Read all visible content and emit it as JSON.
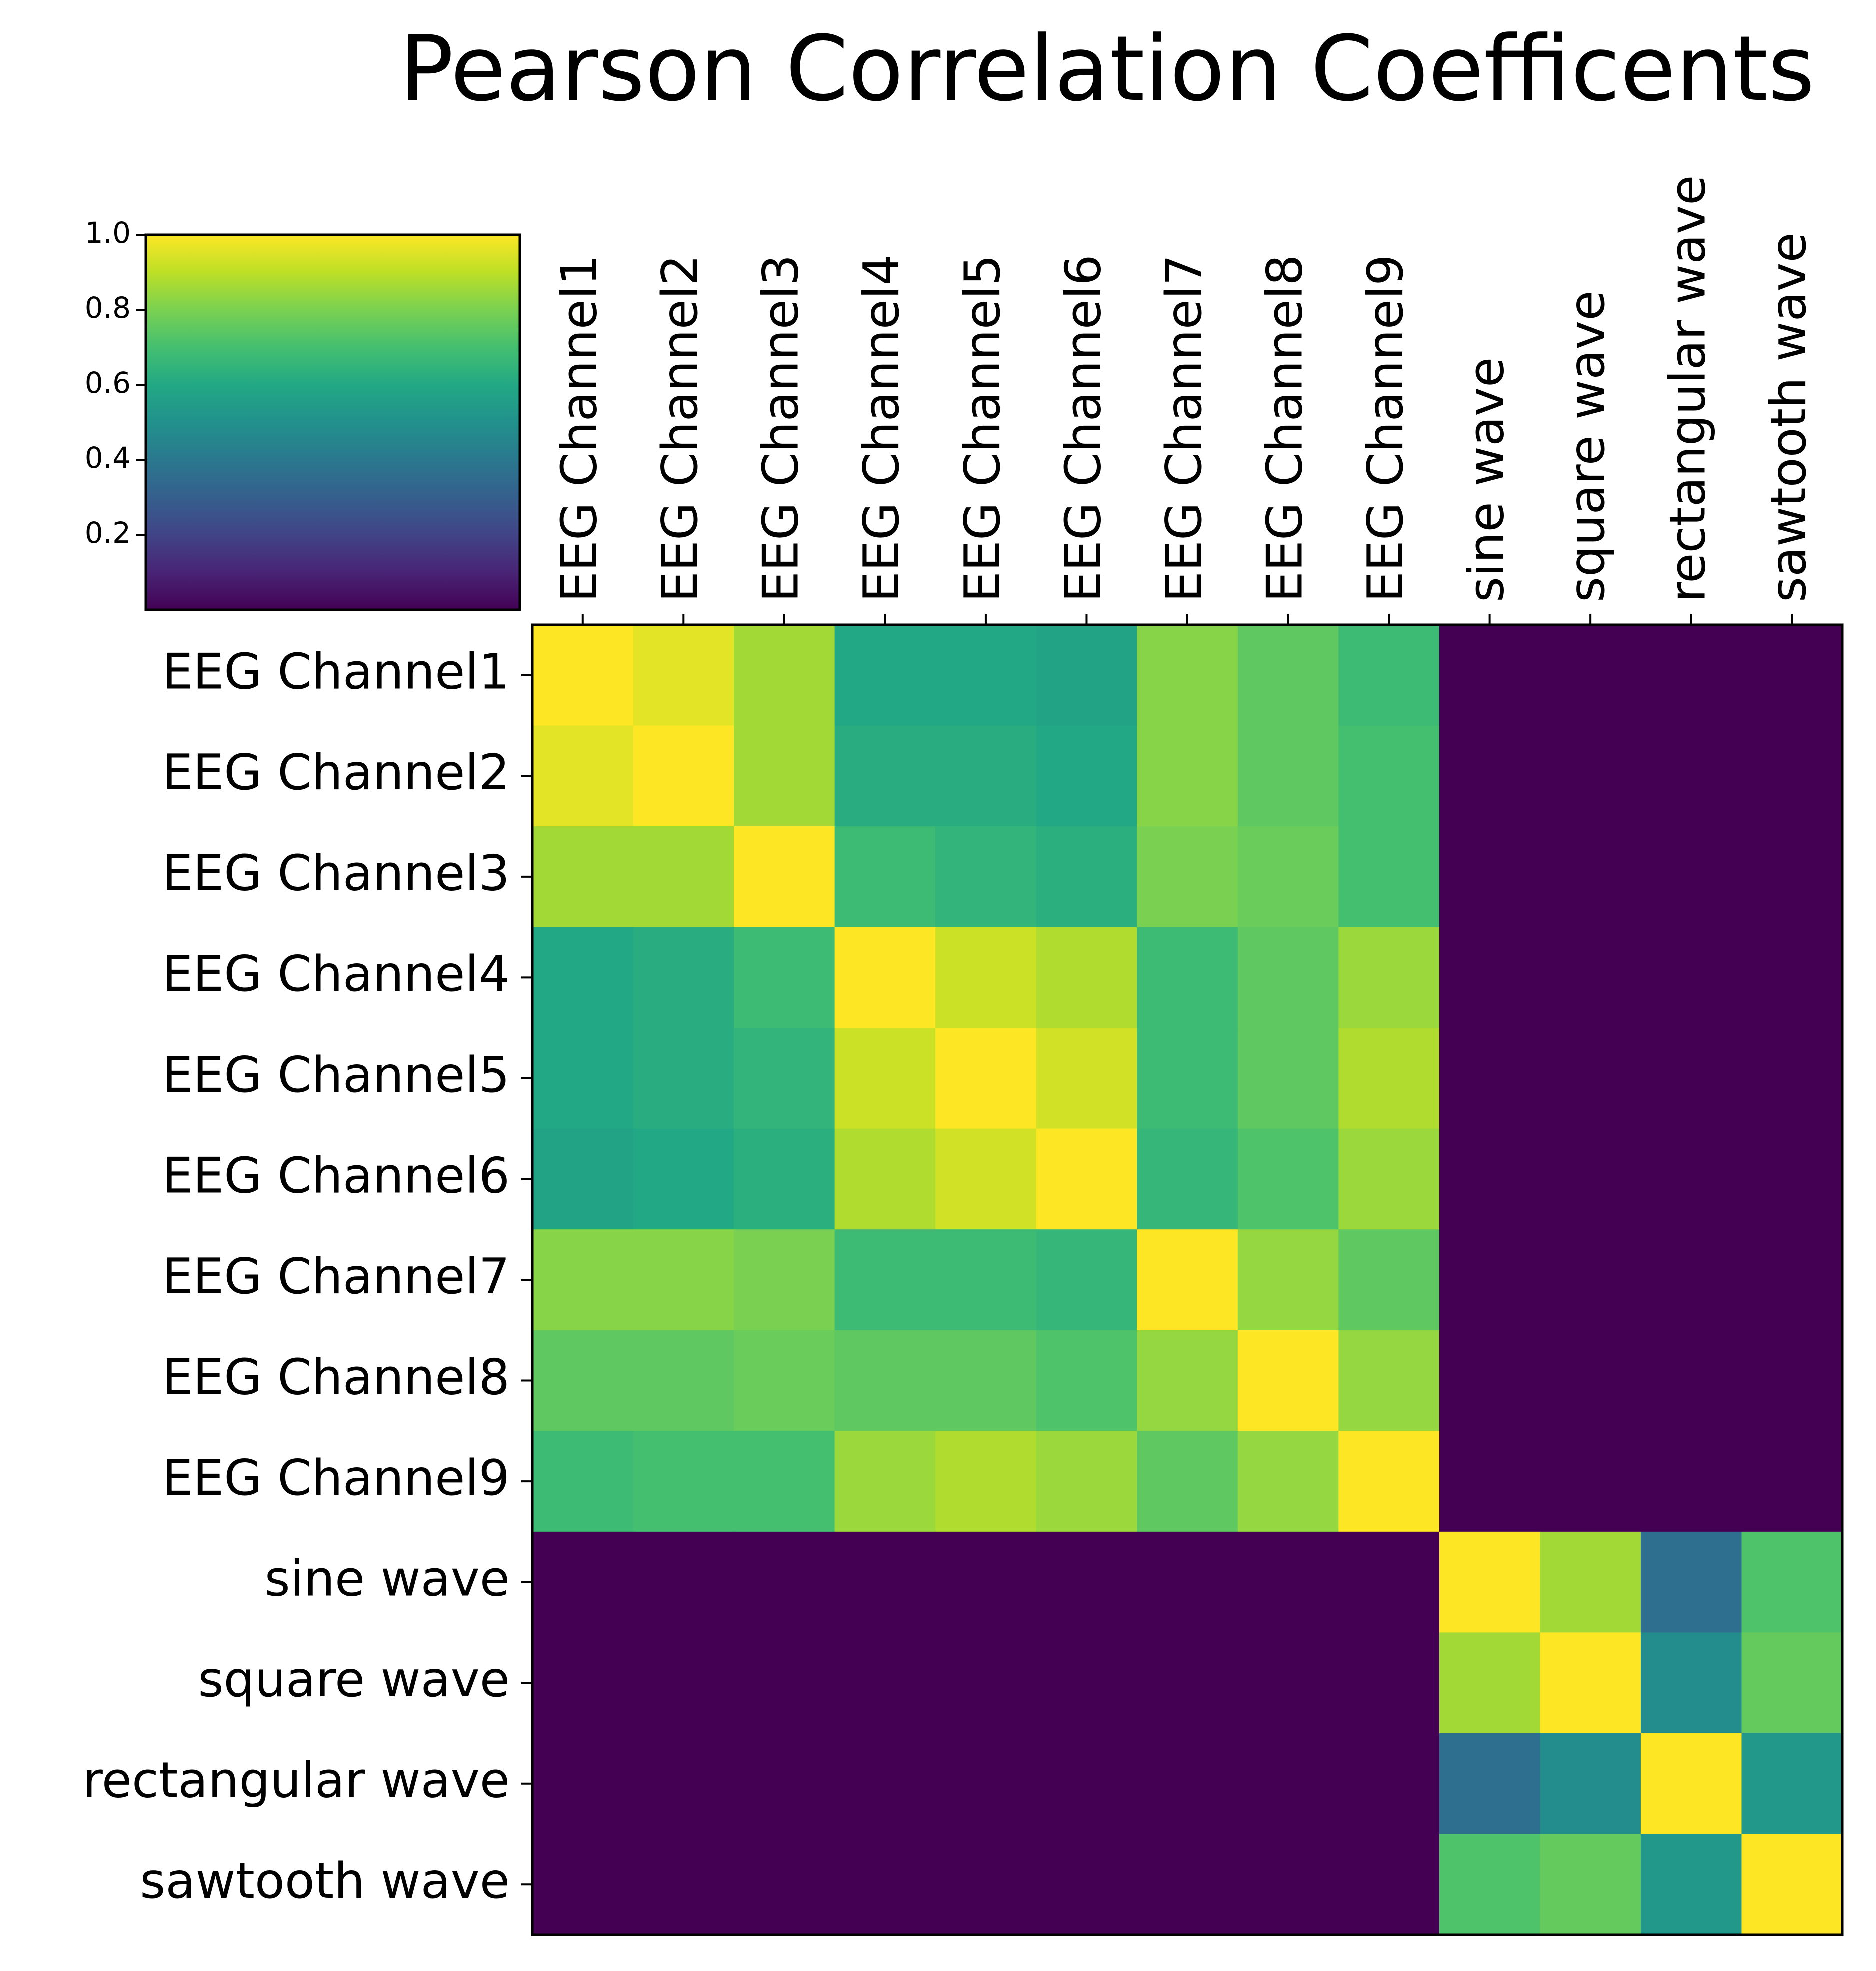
{
  "chart_data": {
    "type": "heatmap",
    "title": "Pearson Correlation Coefficents",
    "labels": [
      "EEG Channel1",
      "EEG Channel2",
      "EEG Channel3",
      "EEG Channel4",
      "EEG Channel5",
      "EEG Channel6",
      "EEG Channel7",
      "EEG Channel8",
      "EEG Channel9",
      "sine wave",
      "square wave",
      "rectangular wave",
      "sawtooth wave"
    ],
    "colormap": "viridis",
    "vmin": 0.0,
    "vmax": 1.0,
    "colorbar_ticks": [
      "0.2",
      "0.4",
      "0.6",
      "0.8",
      "1.0"
    ],
    "colorbar_position": "top-left",
    "grid": false,
    "values": [
      [
        1.0,
        0.96,
        0.86,
        0.6,
        0.6,
        0.58,
        0.82,
        0.75,
        0.68,
        0.0,
        0.0,
        0.0,
        0.0
      ],
      [
        0.96,
        1.0,
        0.86,
        0.62,
        0.62,
        0.6,
        0.82,
        0.75,
        0.7,
        0.0,
        0.0,
        0.0,
        0.0
      ],
      [
        0.86,
        0.86,
        1.0,
        0.68,
        0.65,
        0.63,
        0.8,
        0.77,
        0.7,
        0.0,
        0.0,
        0.0,
        0.0
      ],
      [
        0.6,
        0.62,
        0.68,
        1.0,
        0.92,
        0.88,
        0.68,
        0.75,
        0.85,
        0.0,
        0.0,
        0.0,
        0.0
      ],
      [
        0.6,
        0.62,
        0.65,
        0.92,
        1.0,
        0.93,
        0.68,
        0.75,
        0.88,
        0.0,
        0.0,
        0.0,
        0.0
      ],
      [
        0.58,
        0.6,
        0.63,
        0.88,
        0.93,
        1.0,
        0.66,
        0.72,
        0.85,
        0.0,
        0.0,
        0.0,
        0.0
      ],
      [
        0.82,
        0.82,
        0.8,
        0.68,
        0.68,
        0.66,
        1.0,
        0.84,
        0.75,
        0.0,
        0.0,
        0.0,
        0.0
      ],
      [
        0.75,
        0.75,
        0.77,
        0.75,
        0.75,
        0.72,
        0.84,
        1.0,
        0.84,
        0.0,
        0.0,
        0.0,
        0.0
      ],
      [
        0.68,
        0.7,
        0.7,
        0.85,
        0.88,
        0.85,
        0.75,
        0.84,
        1.0,
        0.0,
        0.0,
        0.0,
        0.0
      ],
      [
        0.0,
        0.0,
        0.0,
        0.0,
        0.0,
        0.0,
        0.0,
        0.0,
        0.0,
        1.0,
        0.86,
        0.36,
        0.72
      ],
      [
        0.0,
        0.0,
        0.0,
        0.0,
        0.0,
        0.0,
        0.0,
        0.0,
        0.0,
        0.86,
        1.0,
        0.48,
        0.76
      ],
      [
        0.0,
        0.0,
        0.0,
        0.0,
        0.0,
        0.0,
        0.0,
        0.0,
        0.0,
        0.36,
        0.48,
        1.0,
        0.53
      ],
      [
        0.0,
        0.0,
        0.0,
        0.0,
        0.0,
        0.0,
        0.0,
        0.0,
        0.0,
        0.72,
        0.76,
        0.53,
        1.0
      ]
    ]
  }
}
